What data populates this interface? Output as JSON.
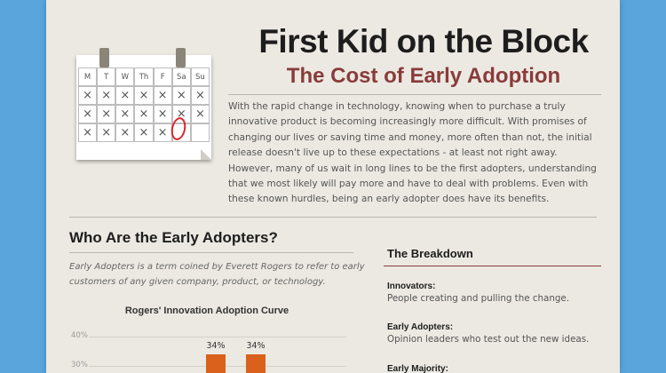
{
  "header": {
    "title": "First Kid on the Block",
    "subtitle": "The Cost of Early Adoption"
  },
  "intro": "With the rapid change in technology, knowing when to purchase a truly innovative product is becoming increasingly more difficult. With promises of changing our lives or saving time and money, more often than not, the initial release doesn't live up to these expectations - at least not right away. However, many of us wait in long lines to be the first adopters, understanding that we most likely will pay more and have to deal with problems.  Even with these known hurdles, being an early adopter does have its benefits.",
  "calendar": {
    "days": [
      "M",
      "T",
      "W",
      "Th",
      "F",
      "Sa",
      "Su"
    ],
    "mark": "×",
    "circled_row": 2,
    "circled_col": 5,
    "crossed": [
      [
        1,
        1,
        1,
        1,
        1,
        1,
        1
      ],
      [
        1,
        1,
        1,
        1,
        1,
        1,
        1
      ],
      [
        1,
        1,
        1,
        1,
        1,
        0,
        0
      ]
    ]
  },
  "section": {
    "heading": "Who Are the Early Adopters?",
    "definition": "Early Adopters is a term coined by Everett Rogers to refer to early customers of any given company, product, or technology."
  },
  "chart_data": {
    "type": "bar",
    "title": "Rogers' Innovation Adoption Curve",
    "ylim": [
      0,
      40
    ],
    "yticks": [
      "40%",
      "30%"
    ],
    "values": [
      34,
      34
    ],
    "data_labels": [
      "34%",
      "34%"
    ],
    "bar_color": "#d9611b"
  },
  "breakdown": {
    "title": "The Breakdown",
    "items": [
      {
        "name": "Innovators:",
        "desc": "People creating and pulling the change."
      },
      {
        "name": "Early Adopters:",
        "desc": "Opinion leaders who test out the new ideas."
      },
      {
        "name": "Early Majority:",
        "desc": ""
      }
    ]
  },
  "colors": {
    "background": "#5aa5dc",
    "panel": "#ebe9e2",
    "subtitle": "#8a3b3b",
    "circle": "#d9262b"
  }
}
